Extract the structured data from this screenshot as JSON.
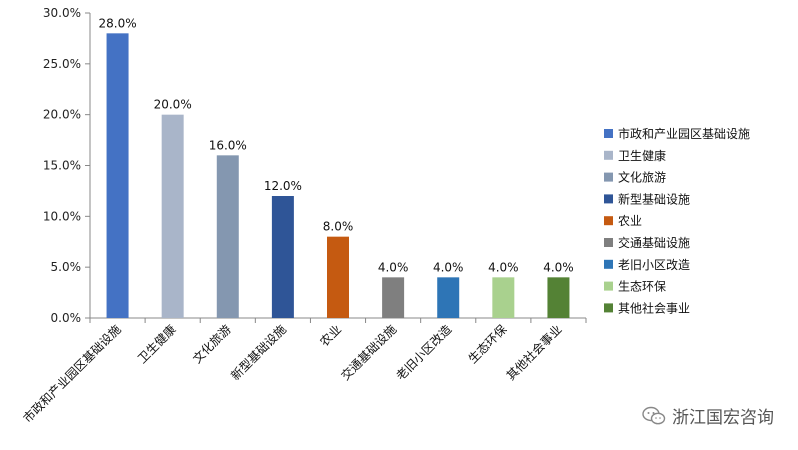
{
  "chart_data": {
    "type": "bar",
    "categories": [
      "市政和产业园区基础设施",
      "卫生健康",
      "文化旅游",
      "新型基础设施",
      "农业",
      "交通基础设施",
      "老旧小区改造",
      "生态环保",
      "其他社会事业"
    ],
    "values": [
      28.0,
      20.0,
      16.0,
      12.0,
      8.0,
      4.0,
      4.0,
      4.0,
      4.0
    ],
    "data_labels": [
      "28.0%",
      "20.0%",
      "16.0%",
      "12.0%",
      "8.0%",
      "4.0%",
      "4.0%",
      "4.0%",
      "4.0%"
    ],
    "colors": [
      "#4472c4",
      "#a9b5c9",
      "#8497b0",
      "#2f5597",
      "#c55a11",
      "#7f7f7f",
      "#2e75b6",
      "#a9d18e",
      "#548235"
    ],
    "yticks": [
      "0.0%",
      "5.0%",
      "10.0%",
      "15.0%",
      "20.0%",
      "25.0%",
      "30.0%"
    ],
    "ylim": [
      0,
      30
    ],
    "legend_position": "right",
    "grid": false
  },
  "watermark": {
    "text": "浙江国宏咨询",
    "icon": "wechat-icon"
  }
}
